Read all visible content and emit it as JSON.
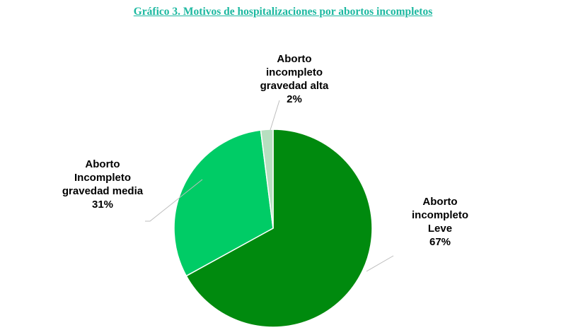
{
  "title": "Gráfico 3. Motivos de hospitalizaciones por abortos incompletos",
  "colors": {
    "title": "#1cb8a0",
    "leve": "#008a0e",
    "media": "#00cc66",
    "alta": "#b7dfc0",
    "leader": "#bdbdbd"
  },
  "chart_data": {
    "type": "pie",
    "slices": [
      {
        "label_lines": [
          "Aborto",
          "incompleto",
          "Leve",
          "67%"
        ],
        "value": 67,
        "color": "#008a0e"
      },
      {
        "label_lines": [
          "Aborto",
          "Incompleto",
          "gravedad media",
          "31%"
        ],
        "value": 31,
        "color": "#00cc66"
      },
      {
        "label_lines": [
          "Aborto",
          "incompleto",
          "gravedad alta",
          "2%"
        ],
        "value": 2,
        "color": "#b7dfc0"
      }
    ]
  }
}
